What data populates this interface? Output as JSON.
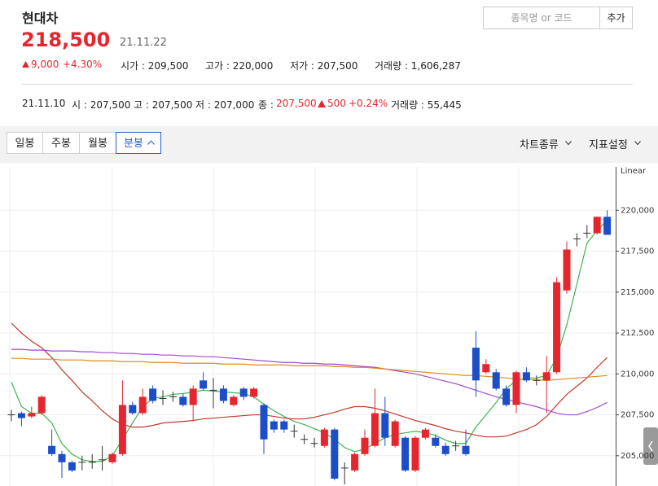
{
  "header": {
    "name": "현대차",
    "price": "218,500",
    "date": "21.11.22",
    "change": "9,000",
    "change_pct": "+4.30%",
    "stats": [
      "시가 : 209,500",
      "고가 : 220,000",
      "저가 : 207,500",
      "거래량 : 1,606,287"
    ],
    "search_placeholder": "종목명 or 코드",
    "add_button": "추가"
  },
  "prev": {
    "date": "21.11.10",
    "open": "시 : 207,500",
    "high": "고 : 207,500",
    "low": "저 : 207,000",
    "close_label": "종 :",
    "close": "207,500",
    "change": "500",
    "change_pct": "+0.24%",
    "volume": "거래량 : 55,445"
  },
  "toolbar": {
    "periods": [
      "일봉",
      "주봉",
      "월봉",
      "분봉"
    ],
    "chart_type": "차트종류",
    "indicators": "지표설정"
  },
  "chart_data": {
    "type": "candlestick",
    "scale_label": "Linear",
    "grid": true,
    "up_color": "#e5262e",
    "down_color": "#1c4ec8",
    "flat_color": "#333333",
    "open": [
      207500,
      207600,
      207400,
      207600,
      205600,
      205100,
      204600,
      204600,
      204600,
      204750,
      204600,
      205100,
      208100,
      207600,
      209100,
      208500,
      208600,
      208600,
      208100,
      209600,
      209000,
      209100,
      208100,
      209100,
      208600,
      208100,
      207100,
      207100,
      206500,
      206000,
      205750,
      205600,
      206600,
      204250,
      204100,
      205100,
      205600,
      207600,
      205600,
      206100,
      204100,
      206100,
      206100,
      205600,
      205600,
      205600,
      211600,
      210100,
      210100,
      209100,
      208100,
      210100,
      209600,
      209600,
      210100,
      215100,
      218250,
      218600,
      218600,
      219600
    ],
    "high": [
      207800,
      207700,
      208000,
      208700,
      206600,
      205300,
      204700,
      205000,
      205100,
      205600,
      205200,
      209600,
      208300,
      209100,
      209300,
      209000,
      208900,
      208800,
      209300,
      210100,
      209750,
      209300,
      208700,
      209200,
      209200,
      208200,
      207200,
      207200,
      206900,
      206300,
      206100,
      206700,
      206700,
      204600,
      205200,
      206600,
      209100,
      208600,
      207200,
      206200,
      206200,
      206700,
      206300,
      205800,
      205900,
      206600,
      212600,
      210900,
      210300,
      209300,
      210200,
      210400,
      209900,
      211100,
      215900,
      218100,
      218600,
      219100,
      219600,
      220000
    ],
    "low": [
      207100,
      206800,
      207300,
      207500,
      205000,
      203650,
      204000,
      204100,
      204200,
      204100,
      204500,
      205000,
      207500,
      207500,
      208200,
      208100,
      208300,
      208000,
      207100,
      209000,
      207900,
      208200,
      208000,
      208400,
      208500,
      205100,
      206400,
      206400,
      206100,
      205700,
      205500,
      205500,
      203500,
      203250,
      204000,
      205000,
      205500,
      205600,
      205500,
      204000,
      204000,
      206000,
      205500,
      205000,
      205300,
      205000,
      208600,
      210000,
      209000,
      208000,
      207600,
      209500,
      209300,
      207600,
      210000,
      214900,
      217800,
      218300,
      218500,
      218500
    ],
    "close": [
      207500,
      207300,
      207600,
      208600,
      205100,
      204600,
      204100,
      204600,
      204600,
      204750,
      205100,
      208100,
      207600,
      208600,
      208350,
      208500,
      208600,
      208100,
      209100,
      209100,
      209000,
      208350,
      208600,
      208600,
      209100,
      206000,
      206600,
      206600,
      206500,
      206000,
      205750,
      206600,
      203600,
      204250,
      205100,
      206100,
      207600,
      206100,
      207100,
      204100,
      206100,
      206600,
      205600,
      205100,
      205600,
      205100,
      209600,
      210600,
      209100,
      208100,
      210100,
      209600,
      209600,
      210100,
      215600,
      217600,
      218250,
      218600,
      219600,
      218500
    ],
    "series": [
      {
        "color": "#3cb44b",
        "values": [
          209500,
          208000,
          207600,
          207600,
          207000,
          205750,
          205100,
          204750,
          204650,
          204650,
          205000,
          206000,
          207000,
          208000,
          208500,
          208600,
          208750,
          208800,
          208900,
          209000,
          208950,
          208900,
          208850,
          208800,
          208600,
          208150,
          207750,
          207400,
          207100,
          206900,
          206650,
          206400,
          206000,
          205500,
          205250,
          205400,
          205750,
          206100,
          206300,
          206400,
          206500,
          206400,
          206250,
          205950,
          205750,
          205750,
          206750,
          207500,
          208250,
          209100,
          209600,
          209750,
          209750,
          209900,
          211000,
          213000,
          215500,
          218000,
          218750,
          219400
        ]
      },
      {
        "color": "#c0392b",
        "values": [
          213100,
          212500,
          212000,
          211600,
          211000,
          210250,
          209600,
          208900,
          208350,
          207750,
          207250,
          206900,
          206750,
          206750,
          206850,
          207000,
          207050,
          207100,
          207150,
          207250,
          207300,
          207350,
          207400,
          207450,
          207500,
          207500,
          207400,
          207300,
          207250,
          207250,
          207350,
          207500,
          207650,
          207850,
          208000,
          208000,
          207900,
          207750,
          207550,
          207350,
          207150,
          207000,
          206850,
          206650,
          206500,
          206400,
          206250,
          206150,
          206150,
          206200,
          206400,
          206600,
          206900,
          207400,
          208100,
          208750,
          209250,
          209750,
          210400,
          211000
        ]
      },
      {
        "color": "#a24bd1",
        "values": [
          211500,
          211500,
          211450,
          211450,
          211400,
          211400,
          211400,
          211350,
          211350,
          211300,
          211300,
          211250,
          211250,
          211200,
          211200,
          211150,
          211150,
          211100,
          211100,
          211050,
          211050,
          211000,
          210950,
          210900,
          210850,
          210800,
          210750,
          210700,
          210700,
          210650,
          210650,
          210600,
          210600,
          210550,
          210500,
          210450,
          210400,
          210300,
          210200,
          210100,
          210000,
          209850,
          209700,
          209550,
          209400,
          209200,
          209000,
          208800,
          208600,
          208450,
          208300,
          208150,
          208000,
          207800,
          207600,
          207500,
          207500,
          207700,
          207950,
          208250
        ]
      },
      {
        "color": "#e08a1e",
        "values": [
          210950,
          210950,
          210900,
          210900,
          210900,
          210850,
          210850,
          210850,
          210800,
          210800,
          210800,
          210750,
          210750,
          210750,
          210700,
          210700,
          210700,
          210650,
          210650,
          210650,
          210650,
          210600,
          210600,
          210600,
          210550,
          210550,
          210550,
          210550,
          210500,
          210500,
          210500,
          210500,
          210450,
          210450,
          210400,
          210400,
          210350,
          210300,
          210250,
          210200,
          210150,
          210100,
          210050,
          210000,
          209950,
          209900,
          209900,
          209850,
          209800,
          209750,
          209700,
          209650,
          209650,
          209600,
          209650,
          209700,
          209750,
          209800,
          209850,
          209900
        ]
      }
    ],
    "ylim": [
      203150,
      222650
    ],
    "yticks": [
      {
        "value": 205000,
        "label": "205,000"
      },
      {
        "value": 207500,
        "label": "207,500"
      },
      {
        "value": 210000,
        "label": "210,000"
      },
      {
        "value": 212500,
        "label": "212,500"
      },
      {
        "value": 215000,
        "label": "215,000"
      },
      {
        "value": 217500,
        "label": "217,500"
      },
      {
        "value": 220000,
        "label": "220,000"
      }
    ]
  }
}
